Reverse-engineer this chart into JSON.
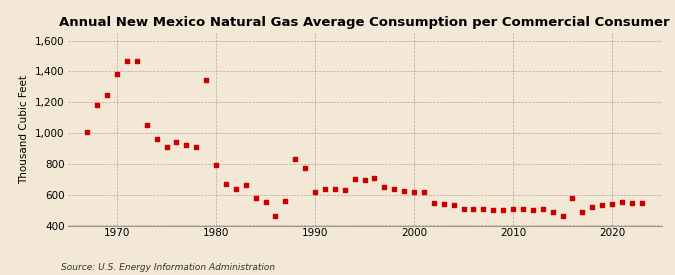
{
  "title": "Annual New Mexico Natural Gas Average Consumption per Commercial Consumer",
  "ylabel": "Thousand Cubic Feet",
  "source": "Source: U.S. Energy Information Administration",
  "background_color": "#f2e8d5",
  "plot_bg_color": "#f2e8d5",
  "marker_color": "#cc0000",
  "years": [
    1967,
    1968,
    1969,
    1970,
    1971,
    1972,
    1973,
    1974,
    1975,
    1976,
    1977,
    1978,
    1979,
    1980,
    1981,
    1982,
    1983,
    1984,
    1985,
    1986,
    1987,
    1988,
    1989,
    1990,
    1991,
    1992,
    1993,
    1994,
    1995,
    1996,
    1997,
    1998,
    1999,
    2000,
    2001,
    2002,
    2003,
    2004,
    2005,
    2006,
    2007,
    2008,
    2009,
    2010,
    2011,
    2012,
    2013,
    2014,
    2015,
    2016,
    2017,
    2018,
    2019,
    2020,
    2021,
    2022,
    2023
  ],
  "values": [
    1005,
    1185,
    1250,
    1385,
    1465,
    1470,
    1055,
    960,
    910,
    940,
    920,
    910,
    1345,
    790,
    670,
    640,
    660,
    580,
    555,
    460,
    560,
    835,
    775,
    620,
    635,
    640,
    630,
    700,
    695,
    710,
    650,
    640,
    625,
    615,
    620,
    545,
    540,
    535,
    510,
    510,
    510,
    500,
    500,
    510,
    510,
    500,
    510,
    490,
    460,
    580,
    490,
    520,
    530,
    540,
    550,
    545,
    545
  ],
  "xlim": [
    1965,
    2025
  ],
  "ylim": [
    400,
    1650
  ],
  "yticks": [
    400,
    600,
    800,
    1000,
    1200,
    1400,
    1600
  ],
  "xticks": [
    1970,
    1980,
    1990,
    2000,
    2010,
    2020
  ],
  "title_fontsize": 9.5,
  "ylabel_fontsize": 7.5,
  "tick_fontsize": 7.5,
  "source_fontsize": 6.5
}
